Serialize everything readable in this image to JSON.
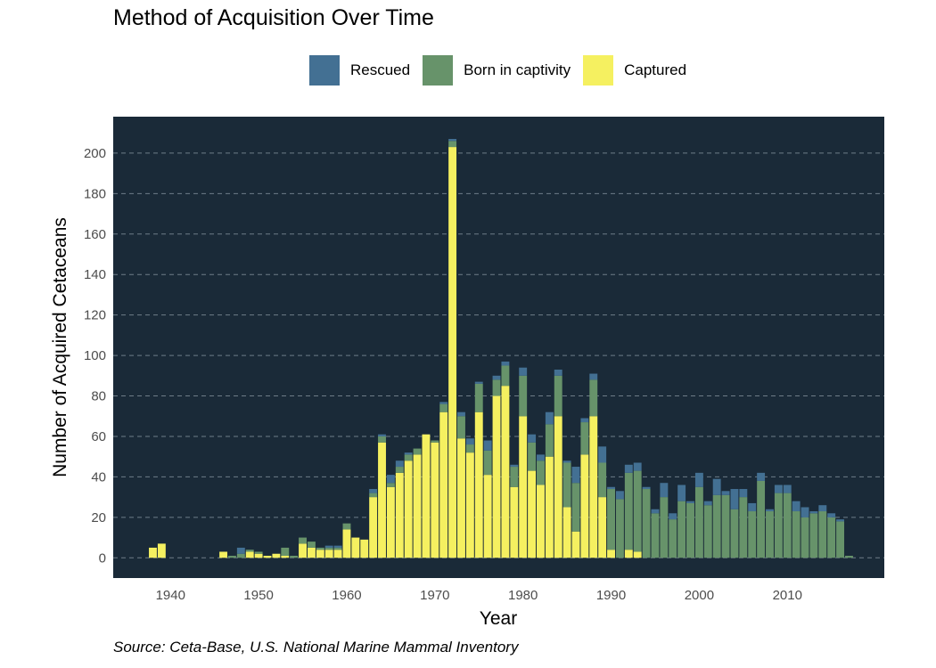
{
  "chart_data": {
    "type": "bar",
    "stacked": true,
    "title": "Method of Acquisition Over Time",
    "xlabel": "Year",
    "ylabel": "Number of Acquired Cetaceans",
    "caption": "Source: Ceta-Base, U.S. National Marine Mammal Inventory",
    "xlim": [
      1933.5,
      2021
    ],
    "ylim": [
      -10,
      218
    ],
    "x_ticks": [
      1940,
      1950,
      1960,
      1970,
      1980,
      1990,
      2000,
      2010
    ],
    "y_ticks": [
      0,
      20,
      40,
      60,
      80,
      100,
      120,
      140,
      160,
      180,
      200
    ],
    "grid": "horizontal-dashed",
    "legend_position": "top",
    "background_color": "#1a2a38",
    "x": [
      1938,
      1939,
      1946,
      1947,
      1948,
      1949,
      1950,
      1951,
      1952,
      1953,
      1954,
      1955,
      1956,
      1957,
      1958,
      1959,
      1960,
      1961,
      1962,
      1963,
      1964,
      1965,
      1966,
      1967,
      1968,
      1969,
      1970,
      1971,
      1972,
      1973,
      1974,
      1975,
      1976,
      1977,
      1978,
      1979,
      1980,
      1981,
      1982,
      1983,
      1984,
      1985,
      1986,
      1987,
      1988,
      1989,
      1990,
      1991,
      1992,
      1993,
      1994,
      1995,
      1996,
      1997,
      1998,
      1999,
      2000,
      2001,
      2002,
      2003,
      2004,
      2005,
      2006,
      2007,
      2008,
      2009,
      2010,
      2011,
      2012,
      2013,
      2014,
      2015,
      2016,
      2017
    ],
    "series": [
      {
        "name": "Captured",
        "color": "#f5f060",
        "values": [
          5,
          7,
          3,
          0,
          0,
          3,
          2,
          1,
          2,
          1,
          0,
          7,
          5,
          4,
          4,
          4,
          14,
          10,
          9,
          30,
          57,
          35,
          42,
          48,
          51,
          61,
          57,
          72,
          203,
          59,
          52,
          72,
          41,
          80,
          85,
          35,
          70,
          43,
          36,
          50,
          70,
          25,
          13,
          51,
          70,
          30,
          4,
          0,
          4,
          3,
          0,
          0,
          0,
          0,
          0,
          0,
          0,
          0,
          0,
          0,
          0,
          0,
          0,
          0,
          0,
          0,
          0,
          0,
          0,
          0,
          0,
          0,
          0,
          0
        ]
      },
      {
        "name": "Born in captivity",
        "color": "#67936a",
        "values": [
          0,
          0,
          0,
          1,
          2,
          1,
          1,
          0,
          0,
          4,
          1,
          3,
          3,
          1,
          1,
          1,
          3,
          0,
          0,
          2,
          3,
          2,
          3,
          3,
          3,
          0,
          1,
          4,
          3,
          11,
          4,
          14,
          12,
          8,
          10,
          10,
          20,
          14,
          12,
          16,
          20,
          22,
          24,
          16,
          18,
          17,
          30,
          29,
          38,
          40,
          34,
          22,
          30,
          19,
          28,
          27,
          35,
          26,
          31,
          31,
          24,
          30,
          23,
          38,
          23,
          32,
          32,
          23,
          20,
          22,
          23,
          20,
          18,
          1
        ]
      },
      {
        "name": "Rescued",
        "color": "#437093",
        "values": [
          0,
          0,
          0,
          0,
          3,
          0,
          0,
          0,
          0,
          0,
          0,
          0,
          0,
          0,
          1,
          1,
          0,
          0,
          0,
          2,
          1,
          4,
          3,
          1,
          0,
          0,
          0,
          1,
          1,
          2,
          3,
          1,
          5,
          2,
          2,
          1,
          4,
          4,
          3,
          6,
          3,
          1,
          8,
          2,
          3,
          8,
          1,
          4,
          4,
          4,
          1,
          2,
          7,
          3,
          8,
          1,
          7,
          2,
          8,
          2,
          10,
          4,
          4,
          4,
          1,
          4,
          4,
          5,
          5,
          1,
          3,
          2,
          1,
          0
        ]
      }
    ]
  }
}
